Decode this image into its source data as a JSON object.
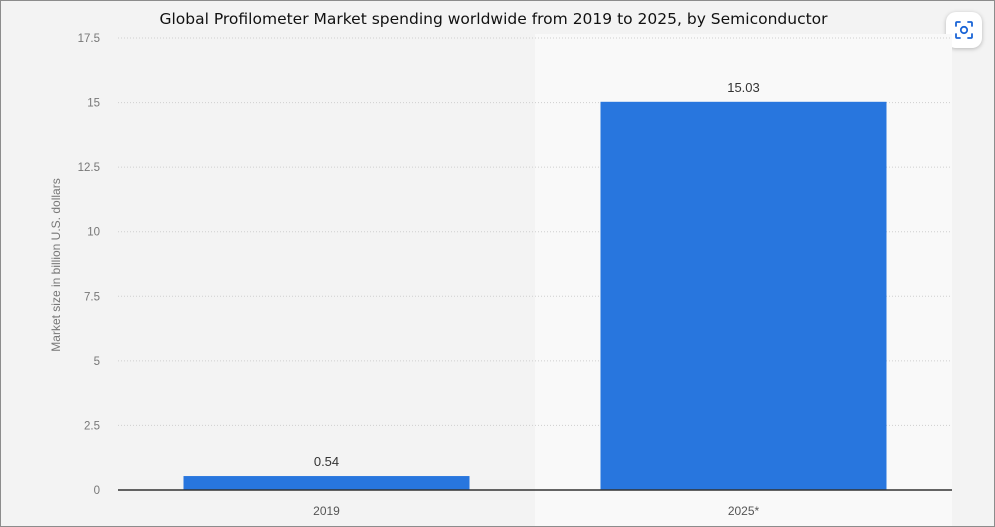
{
  "chart_data": {
    "type": "bar",
    "title": "Global Profilometer Market spending worldwide from 2019 to 2025, by Semiconductor",
    "xlabel": "",
    "ylabel": "Market size in billion U.S. dollars",
    "categories": [
      "2019",
      "2025*"
    ],
    "values": [
      0.54,
      15.03
    ],
    "value_labels": [
      "0.54",
      "15.03"
    ],
    "yticks": [
      "0",
      "2.5",
      "5",
      "7.5",
      "10",
      "12.5",
      "15",
      "17.5"
    ],
    "ylim": [
      0,
      17.5
    ],
    "grid": true,
    "legend": "none",
    "colors": {
      "bar": "#2876de",
      "plot_left_bg": "#f3f3f3",
      "plot_right_bg": "#f9f9f9",
      "grid": "#cfcfcf",
      "axis": "#333333"
    }
  },
  "ui": {
    "scan_icon": "scan-icon"
  }
}
